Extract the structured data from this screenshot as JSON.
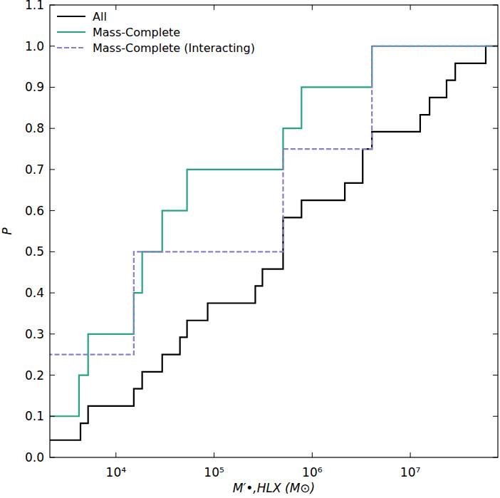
{
  "chart_data": {
    "type": "step",
    "x_label": "M′•,HLX (M⊙)",
    "y_label": "P",
    "log": "x",
    "grid": false,
    "legend": "upper left",
    "xlim": [
      2120,
      78000000
    ],
    "ylim": [
      0,
      1.1
    ],
    "xticks": [
      {
        "value": 10000,
        "label": "10⁴"
      },
      {
        "value": 100000,
        "label": "10⁵"
      },
      {
        "value": 1000000,
        "label": "10⁶"
      },
      {
        "value": 10000000,
        "label": "10⁷"
      }
    ],
    "yticks": [
      {
        "value": 0,
        "label": "0.0"
      },
      0.1,
      0.2,
      0.3,
      0.4,
      0.5,
      0.6,
      0.7,
      0.8,
      0.9,
      {
        "value": 1,
        "label": "1.0"
      },
      1.1
    ],
    "series": [
      {
        "name": "All",
        "color": "#000000",
        "line_style": "solid",
        "x": [
          2000,
          4350,
          5200,
          15200,
          18500,
          29600,
          44900,
          53000,
          86000,
          263000,
          311000,
          505000,
          505000,
          505000,
          778000,
          2150000,
          3270000,
          3270000,
          4060000,
          12600000,
          15700000,
          23400000,
          28700000,
          58700000
        ],
        "values": [
          0.042,
          0.083,
          0.125,
          0.167,
          0.208,
          0.25,
          0.292,
          0.333,
          0.375,
          0.417,
          0.458,
          0.5,
          0.542,
          0.583,
          0.625,
          0.667,
          0.708,
          0.75,
          0.792,
          0.833,
          0.875,
          0.917,
          0.958,
          1.0
        ]
      },
      {
        "name": "Mass-Complete",
        "color": "#26a383",
        "line_style": "solid",
        "x": [
          2000,
          4200,
          5200,
          15200,
          18500,
          29600,
          53000,
          505000,
          778000,
          4060000
        ],
        "values": [
          0.1,
          0.2,
          0.3,
          0.4,
          0.5,
          0.6,
          0.7,
          0.8,
          0.9,
          1.0
        ]
      },
      {
        "name": "Mass-Complete (Interacting)",
        "color": "#8a7fc4",
        "line_style": "dashed",
        "x": [
          2000,
          15200,
          505000,
          4060000
        ],
        "values": [
          0.25,
          0.5,
          0.75,
          1.0
        ]
      }
    ]
  }
}
